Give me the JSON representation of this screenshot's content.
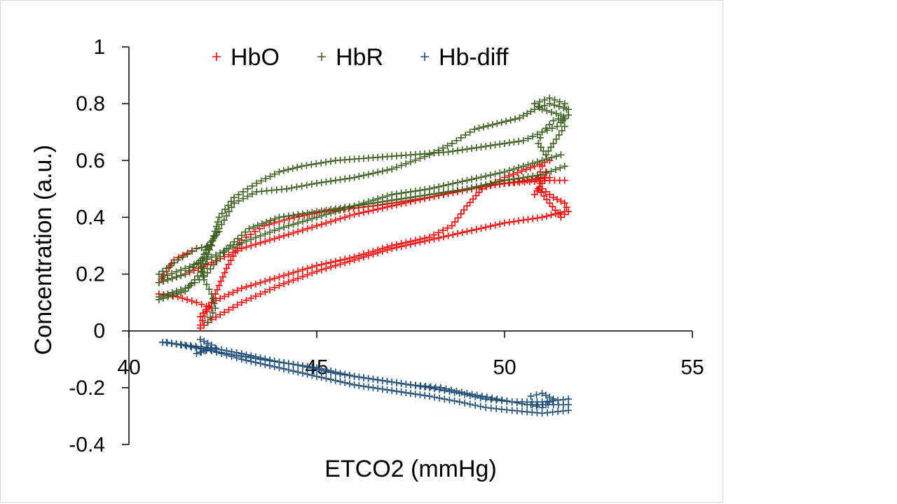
{
  "chart_data": {
    "type": "scatter",
    "marker": "plus",
    "title": "",
    "xlabel": "ETCO2 (mmHg)",
    "ylabel": "Concentration (a.u.)",
    "xlim": [
      40,
      55
    ],
    "ylim": [
      -0.4,
      1
    ],
    "xticks": [
      40,
      45,
      50,
      55
    ],
    "yticks": [
      -0.4,
      -0.2,
      0,
      0.2,
      0.4,
      0.6,
      0.8,
      1
    ],
    "xtick_labels": [
      "40",
      "45",
      "50",
      "55"
    ],
    "ytick_labels": [
      "-0.4",
      "-0.2",
      "0",
      "0.2",
      "0.4",
      "0.6",
      "0.8",
      "1"
    ],
    "legend_position": "top",
    "grid": false,
    "series": [
      {
        "name": "HbO",
        "color": "#ff0000",
        "paths": [
          [
            [
              41.9,
              0.01
            ],
            [
              42.2,
              0.04
            ],
            [
              43.0,
              0.1
            ],
            [
              44.0,
              0.16
            ],
            [
              45.0,
              0.21
            ],
            [
              46.0,
              0.25
            ],
            [
              47.0,
              0.29
            ],
            [
              48.0,
              0.32
            ],
            [
              49.0,
              0.35
            ],
            [
              50.0,
              0.38
            ],
            [
              51.0,
              0.4
            ],
            [
              51.6,
              0.42
            ]
          ],
          [
            [
              41.9,
              0.05
            ],
            [
              42.2,
              0.1
            ],
            [
              43.0,
              0.15
            ],
            [
              44.0,
              0.19
            ],
            [
              45.0,
              0.23
            ],
            [
              46.0,
              0.26
            ],
            [
              47.0,
              0.3
            ],
            [
              48.0,
              0.33
            ],
            [
              48.6,
              0.37
            ],
            [
              49.0,
              0.44
            ],
            [
              49.4,
              0.5
            ],
            [
              50.0,
              0.54
            ],
            [
              50.8,
              0.58
            ],
            [
              51.2,
              0.6
            ]
          ],
          [
            [
              41.9,
              0.02
            ],
            [
              42.2,
              0.1
            ],
            [
              42.6,
              0.22
            ],
            [
              43.0,
              0.32
            ],
            [
              43.6,
              0.37
            ],
            [
              44.4,
              0.4
            ],
            [
              45.2,
              0.42
            ],
            [
              46.5,
              0.44
            ],
            [
              48.0,
              0.47
            ],
            [
              49.5,
              0.51
            ],
            [
              50.6,
              0.53
            ],
            [
              51.2,
              0.54
            ]
          ],
          [
            [
              40.8,
              0.17
            ],
            [
              41.5,
              0.2
            ],
            [
              42.2,
              0.24
            ],
            [
              43.0,
              0.29
            ],
            [
              44.0,
              0.33
            ],
            [
              45.0,
              0.37
            ],
            [
              46.0,
              0.41
            ],
            [
              47.0,
              0.44
            ],
            [
              48.0,
              0.47
            ],
            [
              49.0,
              0.5
            ],
            [
              50.0,
              0.52
            ],
            [
              51.2,
              0.53
            ],
            [
              51.6,
              0.53
            ]
          ],
          [
            [
              40.8,
              0.17
            ],
            [
              41.2,
              0.25
            ],
            [
              41.8,
              0.29
            ],
            [
              42.2,
              0.3
            ]
          ],
          [
            [
              40.8,
              0.13
            ],
            [
              41.3,
              0.12
            ],
            [
              41.8,
              0.1
            ],
            [
              42.2,
              0.08
            ]
          ],
          [
            [
              50.8,
              0.48
            ],
            [
              51.0,
              0.52
            ],
            [
              51.1,
              0.56
            ],
            [
              51.0,
              0.58
            ],
            [
              50.9,
              0.54
            ],
            [
              51.0,
              0.5
            ],
            [
              51.3,
              0.47
            ],
            [
              51.6,
              0.45
            ],
            [
              51.7,
              0.42
            ],
            [
              51.5,
              0.4
            ],
            [
              51.2,
              0.45
            ],
            [
              50.9,
              0.5
            ]
          ]
        ]
      },
      {
        "name": "HbR",
        "color": "#3a5f1e",
        "paths": [
          [
            [
              40.8,
              0.11
            ],
            [
              41.5,
              0.14
            ],
            [
              42.0,
              0.22
            ],
            [
              42.4,
              0.4
            ],
            [
              42.8,
              0.47
            ],
            [
              43.4,
              0.52
            ],
            [
              44.0,
              0.56
            ],
            [
              44.6,
              0.58
            ],
            [
              45.5,
              0.6
            ],
            [
              46.5,
              0.61
            ],
            [
              47.5,
              0.62
            ],
            [
              48.5,
              0.63
            ],
            [
              49.5,
              0.65
            ],
            [
              50.5,
              0.67
            ],
            [
              51.0,
              0.7
            ],
            [
              51.4,
              0.72
            ],
            [
              51.7,
              0.76
            ]
          ],
          [
            [
              40.8,
              0.17
            ],
            [
              41.5,
              0.2
            ],
            [
              42.0,
              0.26
            ],
            [
              42.4,
              0.36
            ],
            [
              42.8,
              0.45
            ],
            [
              43.4,
              0.49
            ],
            [
              44.2,
              0.5
            ],
            [
              45.0,
              0.52
            ],
            [
              46.0,
              0.54
            ],
            [
              47.0,
              0.57
            ],
            [
              48.0,
              0.62
            ],
            [
              48.6,
              0.66
            ],
            [
              49.2,
              0.71
            ],
            [
              49.8,
              0.73
            ],
            [
              50.4,
              0.75
            ],
            [
              50.8,
              0.78
            ],
            [
              51.2,
              0.8
            ],
            [
              51.7,
              0.78
            ]
          ],
          [
            [
              40.8,
              0.12
            ],
            [
              41.5,
              0.15
            ],
            [
              42.0,
              0.19
            ],
            [
              42.6,
              0.29
            ],
            [
              43.2,
              0.36
            ],
            [
              44.0,
              0.4
            ],
            [
              45.0,
              0.42
            ],
            [
              46.0,
              0.44
            ],
            [
              47.0,
              0.46
            ],
            [
              48.0,
              0.48
            ],
            [
              49.0,
              0.5
            ],
            [
              50.0,
              0.53
            ],
            [
              51.0,
              0.55
            ],
            [
              51.6,
              0.58
            ]
          ],
          [
            [
              40.9,
              0.19
            ],
            [
              41.5,
              0.22
            ],
            [
              42.2,
              0.26
            ],
            [
              43.0,
              0.31
            ],
            [
              44.0,
              0.36
            ],
            [
              45.0,
              0.4
            ],
            [
              46.0,
              0.44
            ],
            [
              47.0,
              0.48
            ],
            [
              48.0,
              0.5
            ],
            [
              49.0,
              0.53
            ],
            [
              50.0,
              0.56
            ],
            [
              51.0,
              0.6
            ],
            [
              51.5,
              0.62
            ]
          ],
          [
            [
              40.8,
              0.2
            ],
            [
              41.3,
              0.25
            ],
            [
              41.8,
              0.29
            ],
            [
              42.2,
              0.3
            ]
          ],
          [
            [
              42.1,
              0.03
            ],
            [
              42.3,
              0.08
            ],
            [
              42.2,
              0.13
            ],
            [
              42.0,
              0.18
            ],
            [
              41.9,
              0.24
            ],
            [
              42.1,
              0.3
            ],
            [
              42.4,
              0.35
            ]
          ],
          [
            [
              50.8,
              0.8
            ],
            [
              51.2,
              0.82
            ],
            [
              51.6,
              0.8
            ],
            [
              51.7,
              0.76
            ],
            [
              51.3,
              0.74
            ],
            [
              51.0,
              0.7
            ],
            [
              50.9,
              0.66
            ],
            [
              51.1,
              0.62
            ],
            [
              51.3,
              0.66
            ],
            [
              51.6,
              0.72
            ],
            [
              51.5,
              0.76
            ],
            [
              51.0,
              0.78
            ],
            [
              50.8,
              0.8
            ]
          ]
        ]
      },
      {
        "name": "Hb-diff",
        "color": "#1f4e79",
        "paths": [
          [
            [
              40.9,
              -0.04
            ],
            [
              41.5,
              -0.05
            ],
            [
              42.2,
              -0.06
            ],
            [
              43.0,
              -0.08
            ],
            [
              44.0,
              -0.11
            ],
            [
              45.0,
              -0.13
            ],
            [
              46.0,
              -0.16
            ],
            [
              47.0,
              -0.18
            ],
            [
              48.0,
              -0.2
            ],
            [
              48.8,
              -0.22
            ],
            [
              49.5,
              -0.24
            ],
            [
              50.2,
              -0.25
            ],
            [
              51.0,
              -0.25
            ],
            [
              51.7,
              -0.24
            ]
          ],
          [
            [
              40.9,
              -0.04
            ],
            [
              41.5,
              -0.05
            ],
            [
              42.2,
              -0.07
            ],
            [
              43.0,
              -0.1
            ],
            [
              44.0,
              -0.13
            ],
            [
              45.0,
              -0.16
            ],
            [
              46.0,
              -0.19
            ],
            [
              47.0,
              -0.21
            ],
            [
              48.0,
              -0.23
            ],
            [
              48.8,
              -0.25
            ],
            [
              49.5,
              -0.27
            ],
            [
              50.2,
              -0.28
            ],
            [
              51.0,
              -0.29
            ],
            [
              51.7,
              -0.28
            ]
          ],
          [
            [
              41.0,
              -0.04
            ],
            [
              41.8,
              -0.06
            ],
            [
              42.6,
              -0.08
            ],
            [
              43.5,
              -0.1
            ],
            [
              44.5,
              -0.12
            ],
            [
              45.5,
              -0.15
            ],
            [
              46.5,
              -0.17
            ],
            [
              47.5,
              -0.19
            ],
            [
              48.3,
              -0.2
            ],
            [
              49.0,
              -0.22
            ],
            [
              49.8,
              -0.24
            ],
            [
              50.6,
              -0.26
            ],
            [
              51.3,
              -0.26
            ],
            [
              51.7,
              -0.26
            ]
          ],
          [
            [
              41.9,
              -0.03
            ],
            [
              42.2,
              -0.05
            ],
            [
              42.0,
              -0.07
            ],
            [
              41.8,
              -0.08
            ],
            [
              42.3,
              -0.06
            ]
          ],
          [
            [
              50.7,
              -0.23
            ],
            [
              51.0,
              -0.22
            ],
            [
              51.3,
              -0.24
            ],
            [
              51.0,
              -0.27
            ],
            [
              50.7,
              -0.26
            ]
          ]
        ]
      }
    ]
  }
}
